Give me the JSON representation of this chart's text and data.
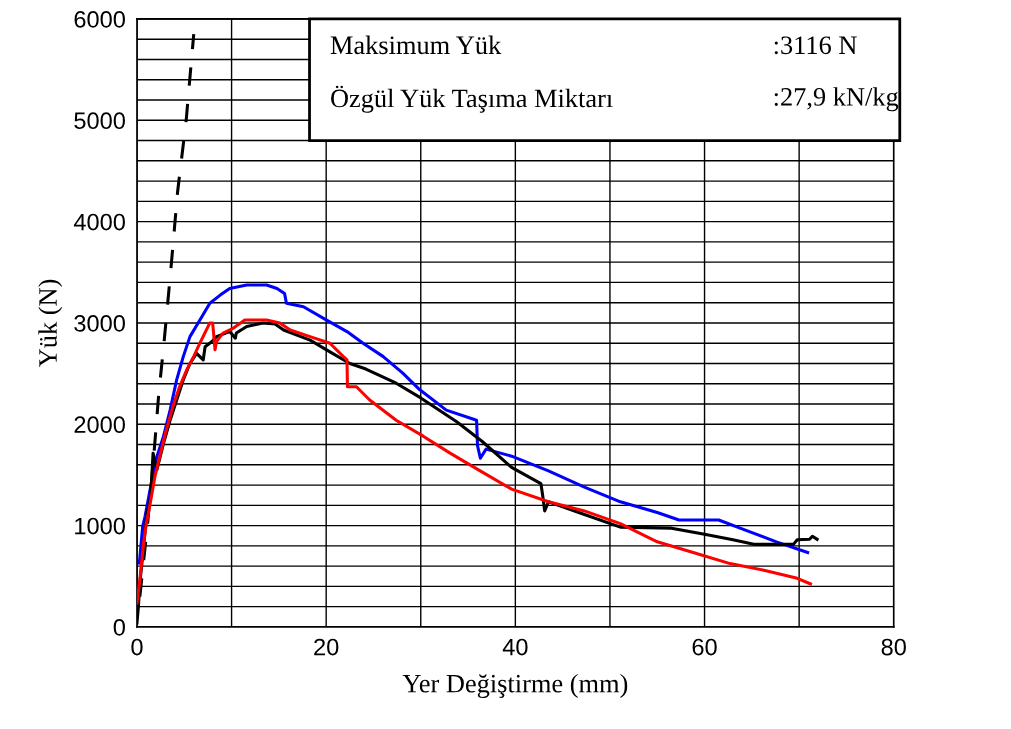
{
  "chart_data": {
    "type": "line",
    "xlabel": "Yer Değiştirme (mm)",
    "ylabel": "Yük (N)",
    "xlim": [
      0,
      80
    ],
    "ylim": [
      0,
      6000
    ],
    "xticks": [
      0,
      {
        "value": 10,
        "label": null
      },
      20,
      {
        "value": 30,
        "label": null
      },
      40,
      {
        "value": 50,
        "label": null
      },
      60,
      {
        "value": 70,
        "label": null
      },
      80
    ],
    "yticks": [
      0,
      {
        "value": 200,
        "label": null
      },
      {
        "value": 400,
        "label": null
      },
      {
        "value": 600,
        "label": null
      },
      {
        "value": 800,
        "label": null
      },
      1000,
      {
        "value": 1200,
        "label": null
      },
      {
        "value": 1400,
        "label": null
      },
      {
        "value": 1600,
        "label": null
      },
      {
        "value": 1800,
        "label": null
      },
      2000,
      {
        "value": 2200,
        "label": null
      },
      {
        "value": 2400,
        "label": null
      },
      {
        "value": 2600,
        "label": null
      },
      {
        "value": 2800,
        "label": null
      },
      3000,
      {
        "value": 3200,
        "label": null
      },
      {
        "value": 3400,
        "label": null
      },
      {
        "value": 3600,
        "label": null
      },
      {
        "value": 3800,
        "label": null
      },
      4000,
      {
        "value": 4200,
        "label": null
      },
      {
        "value": 4400,
        "label": null
      },
      {
        "value": 4600,
        "label": null
      },
      {
        "value": 4800,
        "label": null
      },
      5000,
      {
        "value": 5200,
        "label": null
      },
      {
        "value": 5400,
        "label": null
      },
      {
        "value": 5600,
        "label": null
      },
      {
        "value": 5800,
        "label": null
      },
      6000
    ],
    "grid": true,
    "marker": "none",
    "annotations": [
      "Maksimum Yük",
      ":3116 N",
      "Özgül Yük Taşıma Miktarı",
      ":27,9 kN/kg"
    ],
    "series": [
      {
        "color": "#000000",
        "line_style": "dashed",
        "x": [
          0.3,
          1.1,
          1.7,
          2.3,
          2.85,
          3.6,
          4.3,
          5.2,
          6.0
        ],
        "values": [
          300,
          1000,
          1600,
          2300,
          2800,
          3550,
          4300,
          5000,
          5850
        ]
      },
      {
        "color": "#0000ff",
        "line_style": "solid",
        "x": [
          0.25,
          0.6,
          0.85,
          1.45,
          2.1,
          2.8,
          3.5,
          4.2,
          4.9,
          5.6,
          6.65,
          7.7,
          8.8,
          9.8,
          11.6,
          13.7,
          14.8,
          15.6,
          15.8,
          17.6,
          20.0,
          22.2,
          23.9,
          26.0,
          28.1,
          29.9,
          32.7,
          35.9,
          36.0,
          36.3,
          36.9,
          39.6,
          43.5,
          47.3,
          51.1,
          55.0,
          57.3,
          61.5,
          64.6,
          67.6,
          70.9
        ],
        "values": [
          630,
          990,
          1090,
          1385,
          1680,
          1880,
          2140,
          2440,
          2670,
          2865,
          3030,
          3195,
          3275,
          3340,
          3375,
          3375,
          3340,
          3290,
          3195,
          3160,
          3030,
          2915,
          2800,
          2670,
          2505,
          2340,
          2140,
          2040,
          1790,
          1665,
          1755,
          1685,
          1540,
          1380,
          1235,
          1130,
          1055,
          1055,
          945,
          840,
          735
        ]
      },
      {
        "color": "#000000",
        "line_style": "solid",
        "x": [
          0,
          0.15,
          0.3,
          0.7,
          1.0,
          1.45,
          1.7,
          2.1,
          2.8,
          3.5,
          4.2,
          4.9,
          5.6,
          6.3,
          7.0,
          7.2,
          7.9,
          8.4,
          9.8,
          10.4,
          10.5,
          11.6,
          13.3,
          14.6,
          15.5,
          18.3,
          20.4,
          22.5,
          24.2,
          27.4,
          30.0,
          33.8,
          36.5,
          39.6,
          42.7,
          42.9,
          43.1,
          43.5,
          47.3,
          51.1,
          56.5,
          60.0,
          63.0,
          65.2,
          69.4,
          69.8,
          71.1,
          71.4,
          71.9
        ],
        "values": [
          40,
          200,
          430,
          790,
          1090,
          1285,
          1715,
          1550,
          1810,
          2040,
          2240,
          2440,
          2600,
          2700,
          2635,
          2765,
          2815,
          2865,
          2915,
          2850,
          2900,
          2965,
          3000,
          2990,
          2930,
          2830,
          2715,
          2600,
          2545,
          2405,
          2260,
          2025,
          1830,
          1575,
          1415,
          1290,
          1145,
          1235,
          1110,
          985,
          975,
          915,
          860,
          815,
          815,
          860,
          865,
          895,
          865
        ]
      },
      {
        "color": "#ff0000",
        "line_style": "solid",
        "x": [
          0,
          0.3,
          0.7,
          1.0,
          1.4,
          1.9,
          2.4,
          3.1,
          3.8,
          4.5,
          5.25,
          6.0,
          6.65,
          7.7,
          8.0,
          8.25,
          8.4,
          9.1,
          10.2,
          11.4,
          13.7,
          15.1,
          16.2,
          18.3,
          20.4,
          21.8,
          22.2,
          22.25,
          23.2,
          24.6,
          27.4,
          30.3,
          33.1,
          36.1,
          39.6,
          43.5,
          47.3,
          51.1,
          55.0,
          58.8,
          62.7,
          66.5,
          69.8,
          71.2
        ],
        "values": [
          235,
          465,
          830,
          1025,
          1220,
          1485,
          1680,
          1945,
          2175,
          2370,
          2535,
          2670,
          2800,
          3000,
          3000,
          2735,
          2815,
          2900,
          2950,
          3030,
          3030,
          3000,
          2930,
          2865,
          2800,
          2670,
          2635,
          2370,
          2370,
          2240,
          2040,
          1880,
          1715,
          1550,
          1360,
          1235,
          1145,
          1020,
          840,
          735,
          625,
          555,
          480,
          425
        ]
      }
    ]
  }
}
